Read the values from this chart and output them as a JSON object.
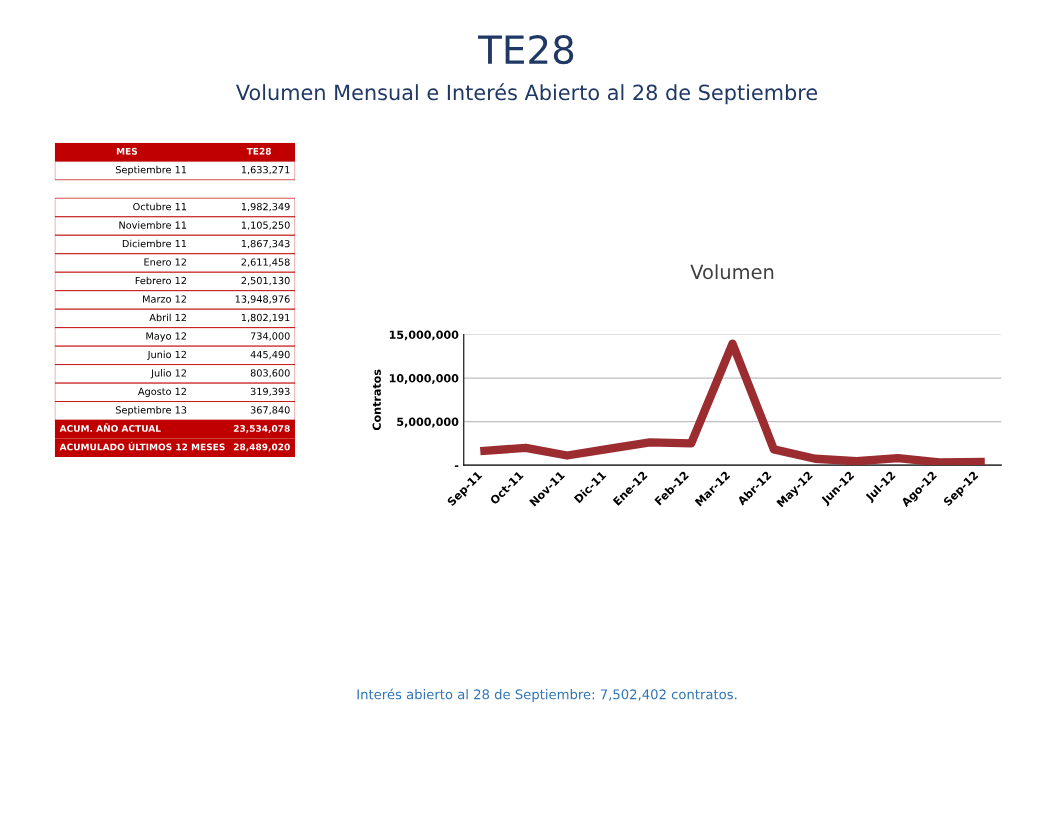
{
  "chart_data": [
    {
      "type": "other",
      "title": "TE28",
      "subtitle": "Volumen Mensual e Interés Abierto al 28 de Septiembre",
      "annotations": [
        "MES",
        "TE28",
        "Septiembre 11",
        "1,633,271",
        "Octubre 11",
        "1,982,349",
        "Noviembre 11",
        "1,105,250",
        "Diciembre 11",
        "1,867,343",
        "Enero 12",
        "2,611,458",
        "Febrero 12",
        "2,501,130",
        "Marzo 12",
        "13,948,976",
        "Abril 12",
        "1,802,191",
        "Mayo 12",
        "734,000",
        "Junio 12",
        "445,490",
        "Julio 12",
        "803,600",
        "Agosto 12",
        "319,393",
        "Septiembre 13",
        "367,840",
        "ACUM. AÑO ACTUAL",
        "23,534,078",
        "ACUMULADO ÚLTIMOS 12 MESES",
        "28,489,020",
        "Interés abierto al 28 de Septiembre: 7,502,402 contratos."
      ]
    },
    {
      "type": "line",
      "title": "Volumen",
      "ylabel": "Contratos",
      "color": "#9b2d30",
      "categories": [
        "Sep-11",
        "Oct-11",
        "Nov-11",
        "Dic-11",
        "Ene-12",
        "Feb-12",
        "Mar-12",
        "Abr-12",
        "May-12",
        "Jun-12",
        "Jul-12",
        "Ago-12",
        "Sep-12"
      ],
      "values": [
        1633271,
        1982349,
        1105250,
        1867343,
        2611458,
        2501130,
        13948976,
        1802191,
        734000,
        445490,
        803600,
        319393,
        367840
      ],
      "ylim": [
        0,
        15000000
      ],
      "yticks": [
        {
          "value": 0,
          "label": "-"
        },
        {
          "value": 5000000,
          "label": "5,000,000"
        },
        {
          "value": 10000000,
          "label": "10,000,000"
        },
        {
          "value": 15000000,
          "label": "15,000,000"
        }
      ],
      "grid": "y",
      "marker": "none",
      "line_style": "solid"
    }
  ]
}
